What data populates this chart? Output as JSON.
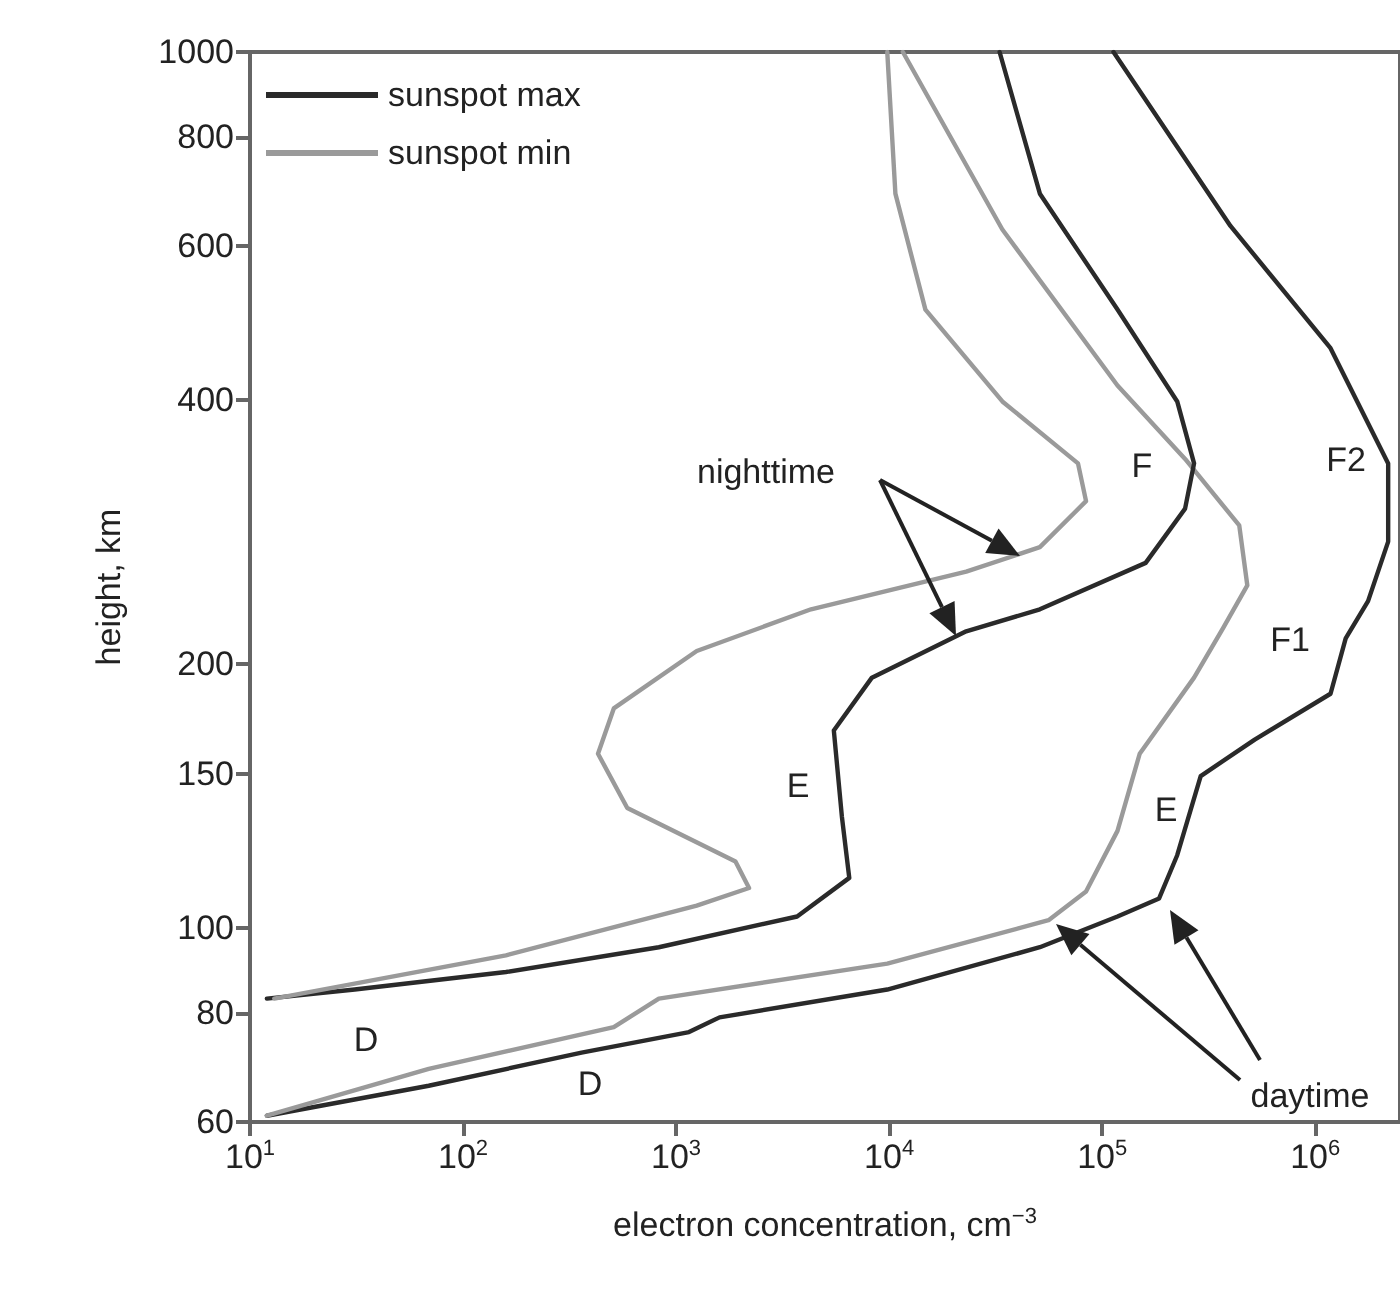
{
  "chart_data": {
    "type": "line",
    "xlabel": "electron concentration, cm$^{−3}$",
    "ylabel": "height, km",
    "log": "xy",
    "xlim": [
      10,
      2500000
    ],
    "ylim": [
      60,
      1000
    ],
    "xticks": [
      {
        "value": 10,
        "label": "10$^{1}$"
      },
      {
        "value": 100,
        "label": "10$^{2}$"
      },
      {
        "value": 1000,
        "label": "10$^{3}$"
      },
      {
        "value": 10000,
        "label": "10$^{4}$"
      },
      {
        "value": 100000,
        "label": "10$^{5}$"
      },
      {
        "value": 1000000,
        "label": "10$^{6}$"
      }
    ],
    "yticks": [
      60,
      80,
      100,
      150,
      200,
      400,
      600,
      800,
      1000
    ],
    "legend": "top left",
    "grid": false,
    "series": [
      {
        "name": "sunspot max",
        "color": "#2a2a2a",
        "x": [
          113000,
          400000,
          1180000,
          2200000,
          2200000,
          1770000,
          1390000,
          1180000,
          520000,
          290000,
          225000,
          185000,
          118000,
          51000,
          9800,
          1600,
          1150,
          360,
          69,
          12
        ],
        "values": [
          1000,
          633,
          459,
          339,
          276,
          236,
          214,
          185,
          164,
          149,
          121,
          108,
          103,
          95,
          85,
          79,
          76,
          72,
          66,
          61
        ]
      },
      {
        "name": "sunspot min",
        "color": "#9a9a9a",
        "x": [
          11600,
          34000,
          118000,
          245000,
          440000,
          480000,
          370000,
          270000,
          150000,
          118000,
          84000,
          56000,
          9800,
          830,
          510,
          69,
          12
        ],
        "values": [
          1000,
          627,
          416,
          343,
          288,
          246,
          220,
          193,
          158,
          129,
          110,
          102,
          91,
          83,
          77,
          69,
          61
        ]
      },
      {
        "color": "#2a2a2a",
        "x": [
          33000,
          51000,
          118000,
          225000,
          270000,
          245000,
          160000,
          51000,
          23000,
          8300,
          5500,
          6000,
          6500,
          3700,
          830,
          159,
          31,
          12
        ],
        "values": [
          1000,
          689,
          508,
          399,
          339,
          301,
          261,
          231,
          218,
          193,
          168,
          134,
          114,
          103,
          95,
          89,
          85,
          83
        ]
      },
      {
        "color": "#9a9a9a",
        "x": [
          9800,
          10700,
          14800,
          34000,
          77000,
          84000,
          51000,
          23000,
          4300,
          1250,
          510,
          430,
          590,
          1900,
          2200,
          1250,
          159,
          13
        ],
        "values": [
          1000,
          689,
          508,
          399,
          339,
          307,
          272,
          255,
          231,
          207,
          178,
          158,
          137,
          119,
          111,
          106,
          93,
          83
        ]
      }
    ],
    "annotations": [
      "nighttime",
      "daytime",
      "F",
      "F2",
      "F1",
      "E",
      "E",
      "D",
      "D"
    ]
  }
}
